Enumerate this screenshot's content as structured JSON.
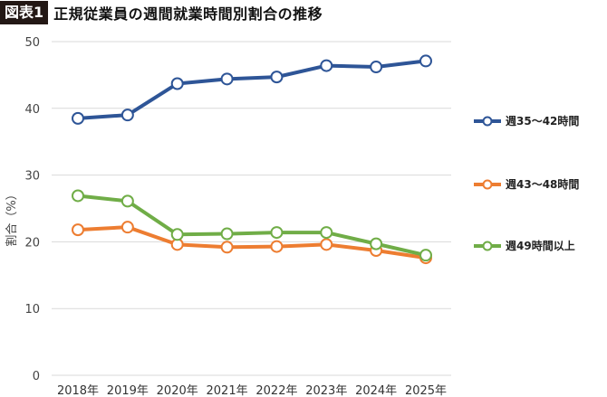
{
  "header": {
    "badge": "図表1",
    "title": "正規従業員の週間就業時間別割合の推移"
  },
  "colors": {
    "series_35_42": "#2E5597",
    "series_43_48": "#ED7D31",
    "series_49_plus": "#70AD47",
    "grid": "#D9D9D9",
    "badge_bg": "#231815"
  },
  "chart_data": {
    "type": "line",
    "categories": [
      "2018年",
      "2019年",
      "2020年",
      "2021年",
      "2022年",
      "2023年",
      "2024年",
      "2025年"
    ],
    "ylabel": "割合（%）",
    "ylim": [
      0,
      50
    ],
    "yticks": [
      "0",
      "10",
      "20",
      "30",
      "40",
      "50"
    ],
    "grid": true,
    "legend_position": "right",
    "series": [
      {
        "name": "週35～42時間",
        "values": [
          38.5,
          39.0,
          43.7,
          44.4,
          44.7,
          46.4,
          46.2,
          47.1
        ]
      },
      {
        "name": "週43～48時間",
        "values": [
          21.8,
          22.2,
          19.6,
          19.2,
          19.3,
          19.6,
          18.7,
          17.6
        ]
      },
      {
        "name": "週49時間以上",
        "values": [
          26.9,
          26.1,
          21.1,
          21.2,
          21.4,
          21.4,
          19.7,
          18.0
        ]
      }
    ]
  }
}
